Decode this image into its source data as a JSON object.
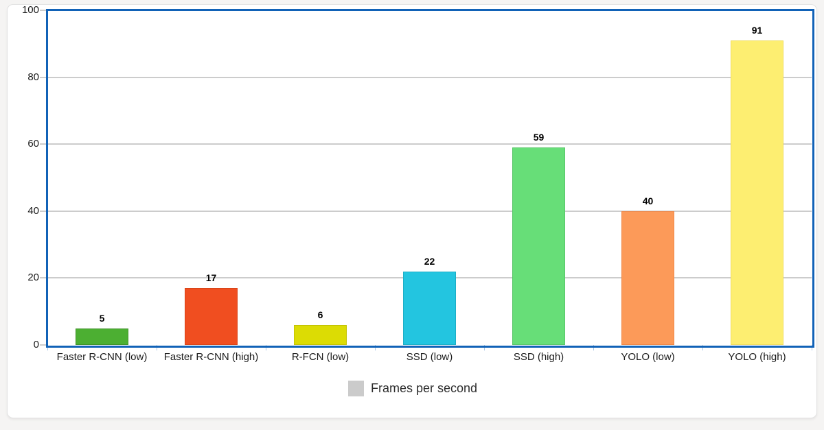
{
  "page": {
    "background": "#f5f4f3"
  },
  "card": {
    "background": "#ffffff",
    "border_color": "#e2e2e2"
  },
  "chart_data": {
    "type": "bar",
    "title": "",
    "categories": [
      "Faster R-CNN (low)",
      "Faster R-CNN (high)",
      "R-FCN (low)",
      "SSD (low)",
      "SSD (high)",
      "YOLO (low)",
      "YOLO (high)"
    ],
    "values": [
      5,
      17,
      6,
      22,
      59,
      40,
      91
    ],
    "bar_colors": [
      "#4caf32",
      "#f04e20",
      "#dcdc04",
      "#23c5e0",
      "#67de78",
      "#fc9a59",
      "#fdee71"
    ],
    "bar_border_colors": [
      "#3f9129",
      "#d94418",
      "#c3c303",
      "#1caec6",
      "#58c668",
      "#ef8746",
      "#efdc5f"
    ],
    "xlabel": "",
    "ylabel": "",
    "ylim": [
      0,
      100
    ],
    "y_ticks": [
      0,
      20,
      40,
      60,
      80,
      100
    ],
    "grid": "horizontal",
    "frame_color": "#1162b7",
    "gridline_color": "#cccccc",
    "category_tick_color": "#a9c6e4",
    "legend": {
      "position": "bottom",
      "label": "Frames per second",
      "swatch_color": "#cbcbcb"
    }
  }
}
